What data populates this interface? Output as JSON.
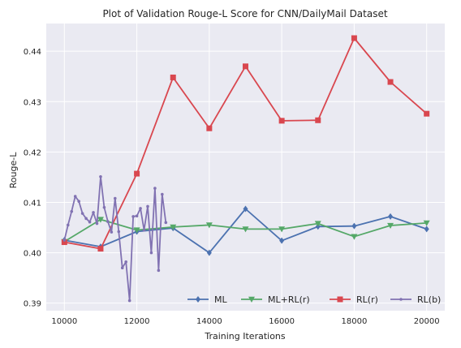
{
  "chart_data": {
    "type": "line",
    "title": "Plot of Validation Rouge-L Score for CNN/DailyMail Dataset",
    "xlabel": "Training Iterations",
    "ylabel": "Rouge-L",
    "xlim": [
      9500,
      20500
    ],
    "ylim": [
      0.3885,
      0.4455
    ],
    "xticks": [
      10000,
      12000,
      14000,
      16000,
      18000,
      20000
    ],
    "xtick_labels": [
      "10000",
      "12000",
      "14000",
      "16000",
      "18000",
      "20000"
    ],
    "yticks": [
      0.39,
      0.4,
      0.41,
      0.42,
      0.43,
      0.44
    ],
    "ytick_labels": [
      "0.39",
      "0.40",
      "0.41",
      "0.42",
      "0.43",
      "0.44"
    ],
    "grid": true,
    "legend_position": "bottom-right",
    "series": [
      {
        "name": "ML",
        "color": "#4c72b0",
        "marker": "diamond",
        "x": [
          10000,
          11000,
          12000,
          13000,
          14000,
          15000,
          16000,
          17000,
          18000,
          19000,
          20000
        ],
        "y": [
          0.4025,
          0.4012,
          0.4042,
          0.4049,
          0.4,
          0.4087,
          0.4024,
          0.4052,
          0.4053,
          0.4072,
          0.4047
        ]
      },
      {
        "name": "ML+RL(r)",
        "color": "#55a868",
        "marker": "triangle-down",
        "x": [
          10000,
          11000,
          12000,
          13000,
          14000,
          15000,
          16000,
          17000,
          18000,
          19000,
          20000
        ],
        "y": [
          0.4022,
          0.4066,
          0.4045,
          0.4051,
          0.4055,
          0.4047,
          0.4047,
          0.4058,
          0.4032,
          0.4054,
          0.4059
        ]
      },
      {
        "name": "RL(r)",
        "color": "#d9474f",
        "marker": "square",
        "x": [
          10000,
          11000,
          12000,
          13000,
          14000,
          15000,
          16000,
          17000,
          18000,
          19000,
          20000
        ],
        "y": [
          0.4021,
          0.4008,
          0.4157,
          0.4348,
          0.4247,
          0.437,
          0.4262,
          0.4263,
          0.4426,
          0.4339,
          0.4276
        ]
      },
      {
        "name": "RL(b)",
        "color": "#8172b2",
        "marker": "dot",
        "x": [
          10000,
          10100,
          10200,
          10300,
          10400,
          10500,
          10600,
          10700,
          10800,
          10900,
          11000,
          11100,
          11200,
          11300,
          11400,
          11500,
          11600,
          11700,
          11800,
          11900,
          12000,
          12100,
          12200,
          12300,
          12400,
          12500,
          12600,
          12700,
          12800
        ],
        "y": [
          0.4025,
          0.4055,
          0.4082,
          0.4112,
          0.4102,
          0.4078,
          0.4068,
          0.4061,
          0.408,
          0.4058,
          0.4151,
          0.409,
          0.4062,
          0.4041,
          0.4108,
          0.4042,
          0.397,
          0.3982,
          0.3905,
          0.4072,
          0.4073,
          0.4088,
          0.4045,
          0.4092,
          0.4,
          0.4128,
          0.3965,
          0.4116,
          0.406
        ]
      }
    ]
  }
}
